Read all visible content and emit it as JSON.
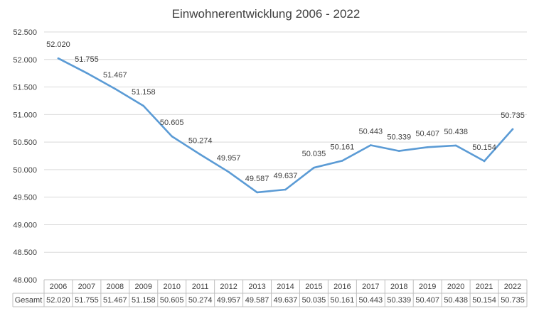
{
  "chart_data": {
    "type": "line",
    "title": "Einwohnerentwicklung 2006 - 2022",
    "xlabel": "",
    "ylabel": "",
    "categories": [
      "2006",
      "2007",
      "2008",
      "2009",
      "2010",
      "2011",
      "2012",
      "2013",
      "2014",
      "2015",
      "2016",
      "2017",
      "2018",
      "2019",
      "2020",
      "2021",
      "2022"
    ],
    "series": [
      {
        "name": "Gesamt",
        "values": [
          52020,
          51755,
          51467,
          51158,
          50605,
          50274,
          49957,
          49587,
          49637,
          50035,
          50161,
          50443,
          50339,
          50407,
          50438,
          50154,
          50735
        ],
        "labels": [
          "52.020",
          "51.755",
          "51.467",
          "51.158",
          "50.605",
          "50.274",
          "49.957",
          "49.587",
          "49.637",
          "50.035",
          "50.161",
          "50.443",
          "50.339",
          "50.407",
          "50.438",
          "50.154",
          "50.735"
        ],
        "color": "#5b9bd5"
      }
    ],
    "ylim": [
      48000,
      52500
    ],
    "yticks": [
      48000,
      48500,
      49000,
      49500,
      50000,
      50500,
      51000,
      51500,
      52000,
      52500
    ],
    "ytick_labels": [
      "48.000",
      "48.500",
      "49.000",
      "49.500",
      "50.000",
      "50.500",
      "51.000",
      "51.500",
      "52.000",
      "52.500"
    ],
    "grid": true,
    "legend": "data table below chart"
  }
}
